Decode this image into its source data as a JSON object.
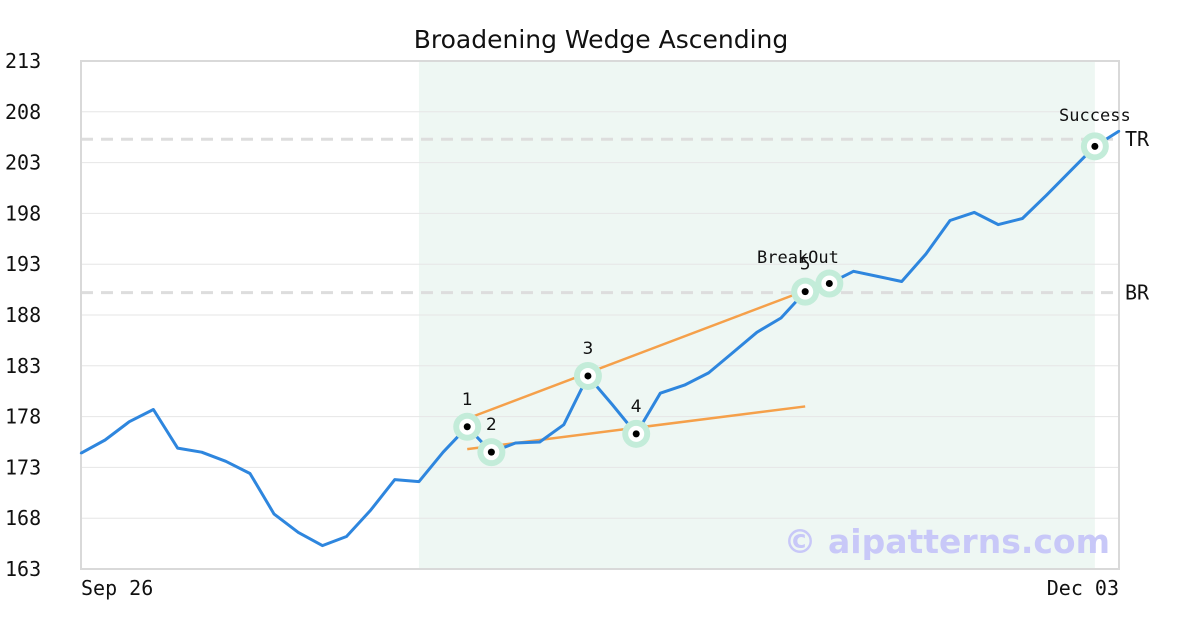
{
  "chart_data": {
    "type": "line",
    "title": "Broadening Wedge Ascending",
    "xlabel": "",
    "ylabel": "",
    "ylim": [
      163,
      213
    ],
    "yticks": [
      "213",
      "208",
      "203",
      "198",
      "193",
      "188",
      "183",
      "178",
      "173",
      "168",
      "163"
    ],
    "x_tick_labels": [
      "Sep 26",
      "Dec 03"
    ],
    "grid": true,
    "series": [
      {
        "values": [
          174.4,
          175.7,
          177.5,
          178.7,
          174.9,
          174.5,
          173.6,
          172.4,
          168.4,
          166.6,
          165.3,
          166.2,
          168.8,
          171.8,
          171.6,
          174.5,
          177.0,
          174.5,
          175.4,
          175.5,
          177.2,
          182.0,
          179.2,
          176.3,
          180.3,
          181.1,
          182.3,
          184.3,
          186.3,
          187.7,
          190.3,
          191.1,
          192.3,
          191.8,
          191.3,
          194.0,
          197.3,
          198.1,
          196.9,
          197.5,
          199.8,
          202.2,
          204.6,
          206.1
        ]
      }
    ],
    "highlight_range": {
      "start_index": 14,
      "end_index": 42
    },
    "reference_lines": [
      {
        "label": "TR",
        "value": 205.3
      },
      {
        "label": "BR",
        "value": 190.2
      }
    ],
    "trend_lines": [
      {
        "from": {
          "index": 16,
          "value": 177.8
        },
        "to": {
          "index": 30,
          "value": 190.4
        }
      },
      {
        "from": {
          "index": 16,
          "value": 174.8
        },
        "to": {
          "index": 30,
          "value": 179.0
        }
      }
    ],
    "markers": [
      {
        "label": "1",
        "index": 16,
        "value": 177.0
      },
      {
        "label": "2",
        "index": 17,
        "value": 174.5
      },
      {
        "label": "3",
        "index": 21,
        "value": 182.0
      },
      {
        "label": "4",
        "index": 23,
        "value": 176.3
      },
      {
        "label": "5",
        "index": 30,
        "value": 190.3
      },
      {
        "label": "",
        "index": 31,
        "value": 191.1
      },
      {
        "label": "",
        "index": 42,
        "value": 204.6
      }
    ],
    "annotations": [
      {
        "text": "BreakOut",
        "index": 29.7,
        "value": 193.7
      },
      {
        "text": "Success",
        "index": 42,
        "value": 207.7
      }
    ],
    "watermark": "© aipatterns.com",
    "colors": {
      "line": "#2e86de",
      "trend": "#f5a04a",
      "highlight": "#eef7f3",
      "marker_halo": "#c3ecd9",
      "reference": "#dddddd",
      "grid": "#e6e6e6",
      "axes": "#d9d9d9"
    }
  }
}
